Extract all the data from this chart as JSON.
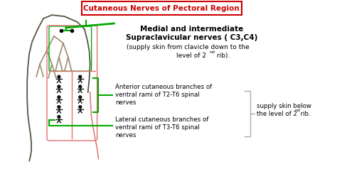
{
  "title": "Cutaneous Nerves of Pectoral Region",
  "title_color": "#cc0000",
  "bg_color": "#ffffff",
  "text_bold1": "Medial and intermediate",
  "text_bold2": "Supraclavicular nerves ( C3,C4)",
  "text_normal1": "(supply skin from clavicle down to the",
  "text_normal2": "level of 2",
  "text_normal2b": "nd",
  "text_normal2c": " rib).",
  "text_ant1": "Anterior cutaneous branches of",
  "text_ant2": "ventral rami of T2-T6 spinal",
  "text_ant3": "nerves",
  "text_lat1": "Lateral cutaneous branches of",
  "text_lat2": "ventral rami of T3-T6 spinal",
  "text_lat3": "nerves",
  "text_right1": "supply skin below",
  "text_right2": "the level of 2",
  "text_right2b": "nd",
  "text_right2c": " rib.",
  "green_color": "#00aa00",
  "pink_color": "#e07070",
  "dark_color": "#555544",
  "nerve_color": "#9b8b6e",
  "figure_color": "#222222"
}
